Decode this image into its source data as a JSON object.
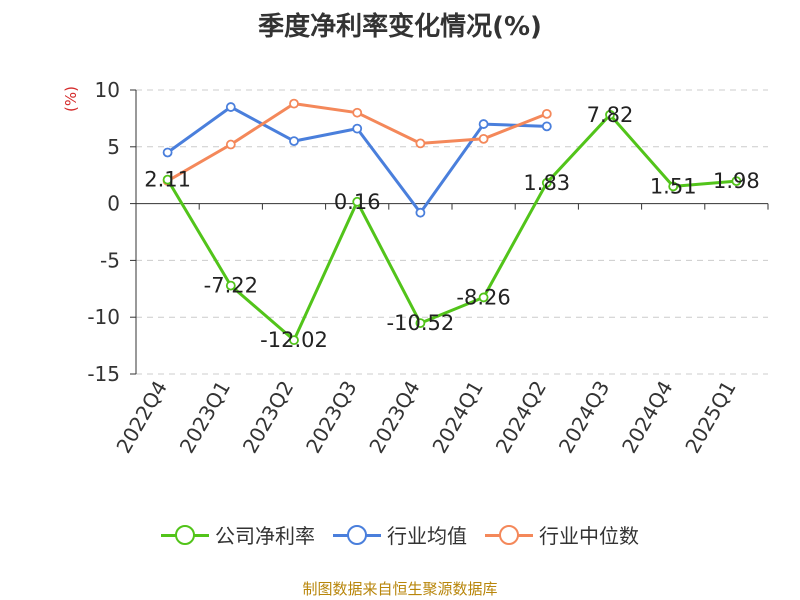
{
  "title": "季度净利率变化情况(%)",
  "unit": "(%)",
  "source": "制图数据来自恒生聚源数据库",
  "chart_data": {
    "type": "line",
    "categories": [
      "2022Q4",
      "2023Q1",
      "2023Q2",
      "2023Q3",
      "2023Q4",
      "2024Q1",
      "2024Q2",
      "2024Q3",
      "2024Q4",
      "2025Q1"
    ],
    "ylim": [
      -15,
      10
    ],
    "yticks": [
      10,
      5,
      0,
      -5,
      -10,
      -15
    ],
    "grid": true,
    "legend_position": "bottom",
    "series": [
      {
        "name": "公司净利率",
        "color": "#52c41a",
        "values": [
          2.11,
          -7.22,
          -12.02,
          0.16,
          -10.52,
          -8.26,
          1.83,
          7.82,
          1.51,
          1.98
        ],
        "labels": [
          "2.11",
          "-7.22",
          "-12.02",
          "0.16",
          "-10.52",
          "-8.26",
          "1.83",
          "7.82",
          "1.51",
          "1.98"
        ]
      },
      {
        "name": "行业均值",
        "color": "#4a7fdc",
        "values": [
          4.5,
          8.5,
          5.5,
          6.6,
          -0.8,
          7.0,
          6.8,
          null,
          null,
          null
        ]
      },
      {
        "name": "行业中位数",
        "color": "#f4885a",
        "values": [
          2.0,
          5.2,
          8.8,
          8.0,
          5.3,
          5.7,
          7.9,
          null,
          null,
          null
        ]
      }
    ]
  }
}
